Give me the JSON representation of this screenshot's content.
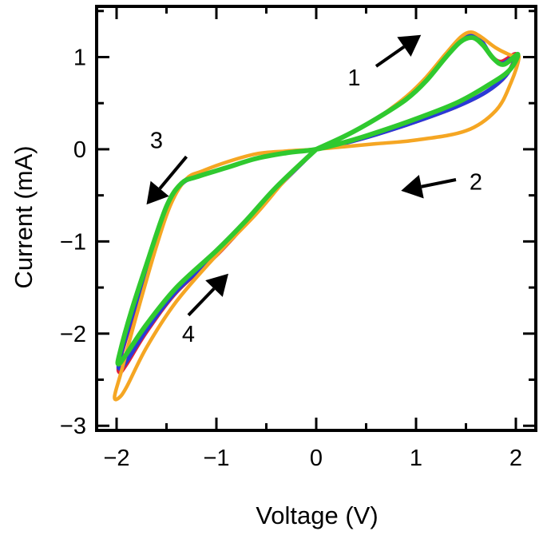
{
  "chart_data": {
    "type": "line",
    "title": "",
    "xlabel": "Voltage (V)",
    "ylabel": "Current (mA)",
    "xlim": [
      -2.2,
      2.2
    ],
    "ylim": [
      -3.05,
      1.55
    ],
    "x_ticks": [
      -2,
      -1,
      0,
      1,
      2
    ],
    "x_tick_labels": [
      "−2",
      "−1",
      "0",
      "1",
      "2"
    ],
    "y_ticks": [
      1,
      0,
      -1,
      -2,
      -3
    ],
    "y_tick_labels": [
      "1",
      "0",
      "−1",
      "−2",
      "−3"
    ],
    "grid": false,
    "series": [
      {
        "name": "cycle-red",
        "color": "#e0203a",
        "points": [
          [
            0,
            0
          ],
          [
            0.3,
            0.15
          ],
          [
            0.6,
            0.33
          ],
          [
            0.9,
            0.55
          ],
          [
            1.1,
            0.76
          ],
          [
            1.3,
            1.02
          ],
          [
            1.45,
            1.2
          ],
          [
            1.55,
            1.24
          ],
          [
            1.65,
            1.18
          ],
          [
            1.75,
            1.02
          ],
          [
            1.85,
            0.95
          ],
          [
            2.0,
            1.03
          ],
          [
            1.9,
            0.8
          ],
          [
            1.7,
            0.62
          ],
          [
            1.4,
            0.46
          ],
          [
            1.0,
            0.3
          ],
          [
            0.6,
            0.16
          ],
          [
            0.3,
            0.07
          ],
          [
            0,
            0
          ],
          [
            -0.3,
            -0.04
          ],
          [
            -0.6,
            -0.1
          ],
          [
            -0.9,
            -0.2
          ],
          [
            -1.2,
            -0.3
          ],
          [
            -1.35,
            -0.38
          ],
          [
            -1.5,
            -0.65
          ],
          [
            -1.7,
            -1.3
          ],
          [
            -1.85,
            -1.85
          ],
          [
            -1.97,
            -2.3
          ],
          [
            -1.97,
            -2.42
          ],
          [
            -1.9,
            -2.33
          ],
          [
            -1.7,
            -1.98
          ],
          [
            -1.4,
            -1.55
          ],
          [
            -1.0,
            -1.15
          ],
          [
            -0.7,
            -0.8
          ],
          [
            -0.4,
            -0.43
          ],
          [
            0,
            0
          ]
        ]
      },
      {
        "name": "cycle-blue",
        "color": "#2a3ad8",
        "points": [
          [
            0,
            0
          ],
          [
            0.3,
            0.15
          ],
          [
            0.6,
            0.33
          ],
          [
            0.9,
            0.55
          ],
          [
            1.1,
            0.76
          ],
          [
            1.3,
            1.02
          ],
          [
            1.45,
            1.19
          ],
          [
            1.56,
            1.23
          ],
          [
            1.66,
            1.17
          ],
          [
            1.76,
            1.0
          ],
          [
            1.86,
            0.93
          ],
          [
            2.0,
            1.01
          ],
          [
            1.9,
            0.8
          ],
          [
            1.7,
            0.62
          ],
          [
            1.4,
            0.46
          ],
          [
            1.0,
            0.3
          ],
          [
            0.6,
            0.16
          ],
          [
            0.3,
            0.07
          ],
          [
            0,
            0
          ],
          [
            -0.3,
            -0.04
          ],
          [
            -0.6,
            -0.1
          ],
          [
            -0.9,
            -0.2
          ],
          [
            -1.2,
            -0.3
          ],
          [
            -1.35,
            -0.38
          ],
          [
            -1.5,
            -0.65
          ],
          [
            -1.7,
            -1.3
          ],
          [
            -1.85,
            -1.83
          ],
          [
            -1.97,
            -2.28
          ],
          [
            -1.97,
            -2.38
          ],
          [
            -1.9,
            -2.3
          ],
          [
            -1.7,
            -1.96
          ],
          [
            -1.4,
            -1.54
          ],
          [
            -1.0,
            -1.14
          ],
          [
            -0.7,
            -0.8
          ],
          [
            -0.4,
            -0.43
          ],
          [
            0,
            0
          ]
        ]
      },
      {
        "name": "cycle-orange",
        "color": "#f5a623",
        "points": [
          [
            0,
            0
          ],
          [
            0.3,
            0.15
          ],
          [
            0.6,
            0.33
          ],
          [
            0.9,
            0.57
          ],
          [
            1.1,
            0.78
          ],
          [
            1.3,
            1.04
          ],
          [
            1.45,
            1.22
          ],
          [
            1.55,
            1.27
          ],
          [
            1.65,
            1.22
          ],
          [
            1.8,
            1.1
          ],
          [
            1.95,
            1.02
          ],
          [
            2.03,
            1.0
          ],
          [
            1.95,
            0.72
          ],
          [
            1.8,
            0.42
          ],
          [
            1.5,
            0.2
          ],
          [
            1.0,
            0.1
          ],
          [
            0.6,
            0.06
          ],
          [
            0.3,
            0.03
          ],
          [
            0,
            0
          ],
          [
            -0.3,
            -0.02
          ],
          [
            -0.6,
            -0.05
          ],
          [
            -0.9,
            -0.14
          ],
          [
            -1.15,
            -0.24
          ],
          [
            -1.3,
            -0.32
          ],
          [
            -1.45,
            -0.58
          ],
          [
            -1.6,
            -1.05
          ],
          [
            -1.8,
            -1.8
          ],
          [
            -1.95,
            -2.4
          ],
          [
            -2.02,
            -2.68
          ],
          [
            -1.98,
            -2.7
          ],
          [
            -1.9,
            -2.58
          ],
          [
            -1.7,
            -2.15
          ],
          [
            -1.4,
            -1.65
          ],
          [
            -1.0,
            -1.15
          ],
          [
            -0.6,
            -0.7
          ],
          [
            -0.3,
            -0.32
          ],
          [
            0,
            0
          ]
        ]
      },
      {
        "name": "cycle-green",
        "color": "#2fc92f",
        "points": [
          [
            0,
            0
          ],
          [
            0.3,
            0.15
          ],
          [
            0.6,
            0.33
          ],
          [
            0.9,
            0.54
          ],
          [
            1.1,
            0.74
          ],
          [
            1.3,
            1.0
          ],
          [
            1.45,
            1.17
          ],
          [
            1.57,
            1.21
          ],
          [
            1.67,
            1.13
          ],
          [
            1.78,
            0.98
          ],
          [
            1.88,
            0.92
          ],
          [
            2.02,
            1.03
          ],
          [
            1.93,
            0.85
          ],
          [
            1.7,
            0.68
          ],
          [
            1.4,
            0.5
          ],
          [
            1.0,
            0.33
          ],
          [
            0.6,
            0.18
          ],
          [
            0.3,
            0.08
          ],
          [
            0,
            0
          ],
          [
            -0.3,
            -0.04
          ],
          [
            -0.6,
            -0.1
          ],
          [
            -0.9,
            -0.2
          ],
          [
            -1.2,
            -0.3
          ],
          [
            -1.35,
            -0.37
          ],
          [
            -1.5,
            -0.62
          ],
          [
            -1.7,
            -1.25
          ],
          [
            -1.85,
            -1.75
          ],
          [
            -1.97,
            -2.22
          ],
          [
            -1.98,
            -2.33
          ],
          [
            -1.9,
            -2.22
          ],
          [
            -1.7,
            -1.9
          ],
          [
            -1.4,
            -1.5
          ],
          [
            -1.0,
            -1.1
          ],
          [
            -0.7,
            -0.77
          ],
          [
            -0.4,
            -0.41
          ],
          [
            0,
            0
          ]
        ]
      }
    ],
    "annotations": [
      {
        "label": "1",
        "label_at": [
          0.38,
          0.78
        ],
        "arrow_from": [
          0.6,
          0.9
        ],
        "arrow_to": [
          1.05,
          1.24
        ]
      },
      {
        "label": "2",
        "label_at": [
          1.6,
          -0.35
        ],
        "arrow_from": [
          1.4,
          -0.33
        ],
        "arrow_to": [
          0.85,
          -0.45
        ]
      },
      {
        "label": "3",
        "label_at": [
          -1.6,
          0.1
        ],
        "arrow_from": [
          -1.3,
          -0.08
        ],
        "arrow_to": [
          -1.7,
          -0.6
        ]
      },
      {
        "label": "4",
        "label_at": [
          -1.28,
          -2.0
        ],
        "arrow_from": [
          -1.28,
          -1.8
        ],
        "arrow_to": [
          -0.88,
          -1.35
        ]
      }
    ]
  }
}
